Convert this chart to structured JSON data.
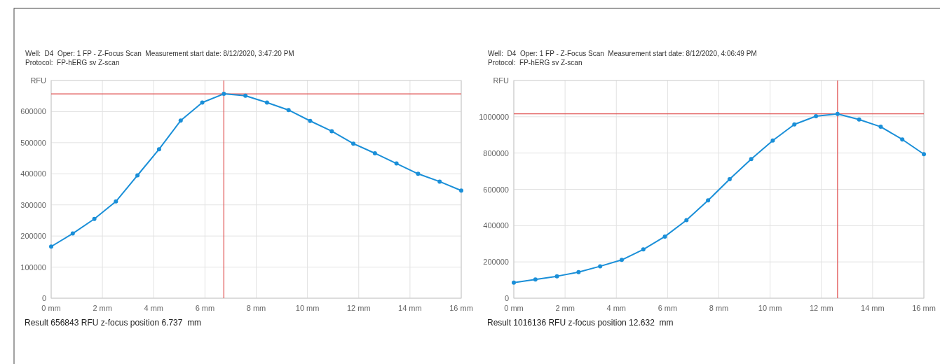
{
  "chart_data": [
    {
      "type": "line",
      "title": "Well:  D4  Oper: 1 FP - Z-Focus Scan  Measurement start date: 8/12/2020, 3:47:20 PM",
      "subtitle": "Protocol:  FP-hERG sv Z-scan",
      "ylabel": "RFU",
      "annotations": [
        "Result 656843 RFU z-focus position 6.737  mm"
      ],
      "x": [
        0,
        0.842,
        1.684,
        2.526,
        3.368,
        4.211,
        5.053,
        5.895,
        6.737,
        7.579,
        8.421,
        9.263,
        10.105,
        10.947,
        11.789,
        12.632,
        13.474,
        14.316,
        15.158,
        16
      ],
      "series": [
        {
          "color": "#1a8fd8",
          "values": [
            166000,
            208000,
            255000,
            311000,
            395000,
            479000,
            571000,
            629000,
            657000,
            651000,
            629000,
            605000,
            570000,
            537000,
            497000,
            466000,
            433000,
            400000,
            375000,
            346000
          ]
        }
      ],
      "xlim": [
        0,
        16
      ],
      "xticks": [
        {
          "value": 0,
          "label": "0 mm"
        },
        {
          "value": 2,
          "label": "2 mm"
        },
        {
          "value": 4,
          "label": "4 mm"
        },
        {
          "value": 6,
          "label": "6 mm"
        },
        {
          "value": 8,
          "label": "8 mm"
        },
        {
          "value": 10,
          "label": "10 mm"
        },
        {
          "value": 12,
          "label": "12 mm"
        },
        {
          "value": 14,
          "label": "14 mm"
        },
        {
          "value": 16,
          "label": "16 mm"
        }
      ],
      "ylim": [
        0,
        700000
      ],
      "yticks": [
        0,
        100000,
        200000,
        300000,
        400000,
        500000,
        600000
      ],
      "ref_lines": [
        {
          "axis": "y",
          "value": 656843,
          "color": "#e05050"
        },
        {
          "axis": "x",
          "value": 6.737,
          "color": "#e05050"
        }
      ],
      "grid": true,
      "marker": "circle",
      "line_style": "solid"
    },
    {
      "type": "line",
      "title": "Well:  D4  Oper: 1 FP - Z-Focus Scan  Measurement start date: 8/12/2020, 4:06:49 PM",
      "subtitle": "Protocol:  FP-hERG sv Z-scan",
      "ylabel": "RFU",
      "annotations": [
        "Result 1016136 RFU z-focus position 12.632  mm"
      ],
      "x": [
        0,
        0.842,
        1.684,
        2.526,
        3.368,
        4.211,
        5.053,
        5.895,
        6.737,
        7.579,
        8.421,
        9.263,
        10.105,
        10.947,
        11.789,
        12.632,
        13.474,
        14.316,
        15.158,
        16
      ],
      "series": [
        {
          "color": "#1a8fd8",
          "values": [
            86000,
            103000,
            121000,
            144000,
            176000,
            211000,
            269000,
            340000,
            430000,
            539000,
            656000,
            767000,
            869000,
            958000,
            1003000,
            1016000,
            985000,
            945000,
            875000,
            794000
          ]
        }
      ],
      "xlim": [
        0,
        16
      ],
      "xticks": [
        {
          "value": 0,
          "label": "0 mm"
        },
        {
          "value": 2,
          "label": "2 mm"
        },
        {
          "value": 4,
          "label": "4 mm"
        },
        {
          "value": 6,
          "label": "6 mm"
        },
        {
          "value": 8,
          "label": "8 mm"
        },
        {
          "value": 10,
          "label": "10 mm"
        },
        {
          "value": 12,
          "label": "12 mm"
        },
        {
          "value": 14,
          "label": "14 mm"
        },
        {
          "value": 16,
          "label": "16 mm"
        }
      ],
      "ylim": [
        0,
        1200000
      ],
      "yticks": [
        0,
        200000,
        400000,
        600000,
        800000,
        1000000
      ],
      "ref_lines": [
        {
          "axis": "y",
          "value": 1016136,
          "color": "#e05050"
        },
        {
          "axis": "x",
          "value": 12.632,
          "color": "#e05050"
        }
      ],
      "grid": true,
      "marker": "circle",
      "line_style": "solid"
    }
  ]
}
